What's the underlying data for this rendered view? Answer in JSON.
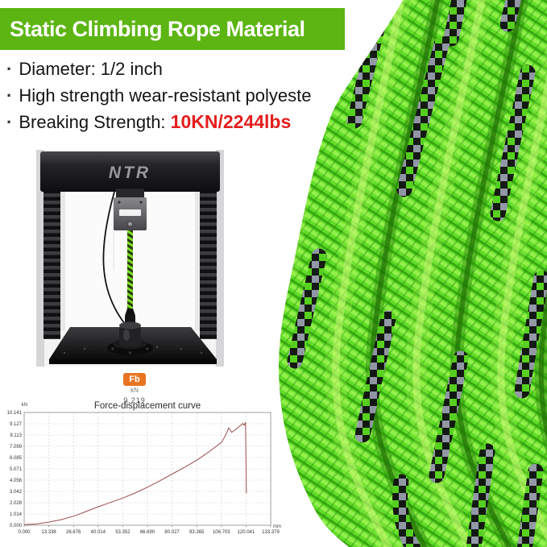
{
  "header": {
    "title": "Static Climbing Rope Material",
    "bg_color": "#5cb512",
    "text_color": "#ffffff"
  },
  "specs": {
    "items": [
      {
        "text": "Diameter: 1/2 inch"
      },
      {
        "text": "High strength wear-resistant polyeste"
      },
      {
        "prefix": "Breaking Strength: ",
        "value": "10KN/2244lbs",
        "value_color": "#e41d1d"
      }
    ]
  },
  "test_machine": {
    "brand": "NTR"
  },
  "readout": {
    "label": "Fb",
    "unit": "kN",
    "value": "9.219",
    "badge_color": "#e87422"
  },
  "rope_photo": {
    "main_color": "#60dd28",
    "accent_colors": [
      "#92ef4c",
      "#2f9a10",
      "#101010",
      "#9595ac"
    ]
  },
  "chart_data": {
    "type": "line",
    "title": "Force-displacement curve",
    "xlabel": "",
    "ylabel": "",
    "x_unit": "mm",
    "y_unit": "kN",
    "xlim": [
      0,
      133.379
    ],
    "ylim": [
      0,
      10.141
    ],
    "x_ticks": [
      "0.000",
      "13.338",
      "26.676",
      "40.014",
      "53.352",
      "66.690",
      "80.027",
      "93.365",
      "106.703",
      "120.041",
      "133.379"
    ],
    "y_ticks": [
      "10.141",
      "9.127",
      "8.113",
      "7.099",
      "6.085",
      "5.071",
      "4.056",
      "3.042",
      "2.028",
      "1.014",
      "0.000"
    ],
    "grid": true,
    "legend": false,
    "line_color": "#9c4c4c",
    "peak_force_kn": 9.219,
    "series": [
      {
        "name": "Force (kN)",
        "points": [
          [
            0,
            0.06
          ],
          [
            7,
            0.12
          ],
          [
            13.3,
            0.28
          ],
          [
            20,
            0.5
          ],
          [
            26.7,
            0.82
          ],
          [
            33,
            1.2
          ],
          [
            40,
            1.66
          ],
          [
            46.7,
            2.05
          ],
          [
            53.4,
            2.45
          ],
          [
            60,
            2.9
          ],
          [
            66.7,
            3.42
          ],
          [
            73.4,
            4.0
          ],
          [
            80,
            4.6
          ],
          [
            86.7,
            5.2
          ],
          [
            93.4,
            5.85
          ],
          [
            100,
            6.6
          ],
          [
            106.7,
            7.45
          ],
          [
            109,
            8.1
          ],
          [
            110.7,
            8.75
          ],
          [
            112.3,
            8.36
          ],
          [
            114,
            8.55
          ],
          [
            118.3,
            9.15
          ],
          [
            119,
            9.0
          ],
          [
            119.8,
            9.219
          ],
          [
            120.2,
            2.9
          ]
        ]
      }
    ]
  }
}
